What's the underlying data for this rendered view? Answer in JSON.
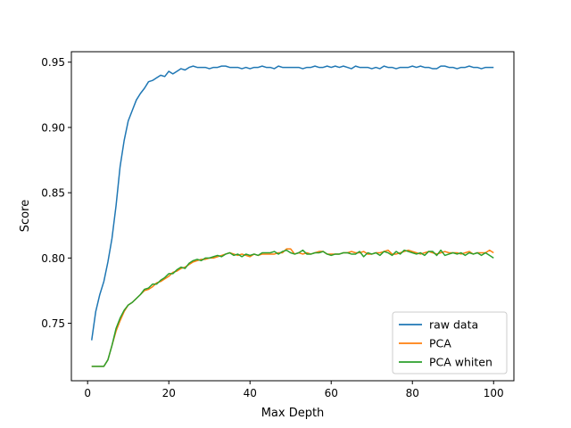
{
  "chart_data": {
    "type": "line",
    "title": "",
    "xlabel": "Max Depth",
    "ylabel": "Score",
    "xlim": [
      -4,
      105
    ],
    "ylim": [
      0.706,
      0.958
    ],
    "xticks": [
      0,
      20,
      40,
      60,
      80,
      100
    ],
    "xtick_labels": [
      "0",
      "20",
      "40",
      "60",
      "80",
      "100"
    ],
    "yticks": [
      0.75,
      0.8,
      0.85,
      0.9,
      0.95
    ],
    "ytick_labels": [
      "0.75",
      "0.80",
      "0.85",
      "0.90",
      "0.95"
    ],
    "grid": false,
    "legend_position": "lower-right",
    "x": [
      1,
      2,
      3,
      4,
      5,
      6,
      7,
      8,
      9,
      10,
      11,
      12,
      13,
      14,
      15,
      16,
      17,
      18,
      19,
      20,
      21,
      22,
      23,
      24,
      25,
      26,
      27,
      28,
      29,
      30,
      31,
      32,
      33,
      34,
      35,
      36,
      37,
      38,
      39,
      40,
      41,
      42,
      43,
      44,
      45,
      46,
      47,
      48,
      49,
      50,
      51,
      52,
      53,
      54,
      55,
      56,
      57,
      58,
      59,
      60,
      61,
      62,
      63,
      64,
      65,
      66,
      67,
      68,
      69,
      70,
      71,
      72,
      73,
      74,
      75,
      76,
      77,
      78,
      79,
      80,
      81,
      82,
      83,
      84,
      85,
      86,
      87,
      88,
      89,
      90,
      91,
      92,
      93,
      94,
      95,
      96,
      97,
      98,
      99,
      100
    ],
    "series": [
      {
        "name": "raw data",
        "color": "#1f77b4",
        "values": [
          0.737,
          0.759,
          0.772,
          0.782,
          0.797,
          0.815,
          0.84,
          0.87,
          0.89,
          0.905,
          0.913,
          0.921,
          0.926,
          0.93,
          0.935,
          0.936,
          0.938,
          0.94,
          0.939,
          0.943,
          0.941,
          0.943,
          0.945,
          0.944,
          0.946,
          0.947,
          0.946,
          0.946,
          0.946,
          0.945,
          0.946,
          0.946,
          0.947,
          0.947,
          0.946,
          0.946,
          0.946,
          0.945,
          0.946,
          0.945,
          0.946,
          0.946,
          0.947,
          0.946,
          0.946,
          0.945,
          0.947,
          0.946,
          0.946,
          0.946,
          0.946,
          0.946,
          0.945,
          0.946,
          0.946,
          0.947,
          0.946,
          0.946,
          0.947,
          0.946,
          0.947,
          0.946,
          0.947,
          0.946,
          0.945,
          0.947,
          0.946,
          0.946,
          0.946,
          0.945,
          0.946,
          0.945,
          0.947,
          0.946,
          0.946,
          0.945,
          0.946,
          0.946,
          0.946,
          0.947,
          0.946,
          0.947,
          0.946,
          0.946,
          0.945,
          0.945,
          0.947,
          0.947,
          0.946,
          0.946,
          0.945,
          0.946,
          0.946,
          0.947,
          0.946,
          0.946,
          0.945,
          0.946,
          0.946,
          0.946
        ]
      },
      {
        "name": "PCA",
        "color": "#ff7f0e",
        "values": [
          0.717,
          0.717,
          0.717,
          0.717,
          0.722,
          0.733,
          0.744,
          0.752,
          0.759,
          0.764,
          0.766,
          0.769,
          0.772,
          0.775,
          0.776,
          0.778,
          0.781,
          0.782,
          0.784,
          0.786,
          0.789,
          0.79,
          0.792,
          0.793,
          0.795,
          0.797,
          0.798,
          0.799,
          0.799,
          0.8,
          0.8,
          0.801,
          0.802,
          0.803,
          0.804,
          0.803,
          0.802,
          0.803,
          0.802,
          0.801,
          0.803,
          0.802,
          0.803,
          0.803,
          0.803,
          0.803,
          0.804,
          0.804,
          0.807,
          0.807,
          0.803,
          0.804,
          0.803,
          0.804,
          0.803,
          0.804,
          0.805,
          0.805,
          0.803,
          0.803,
          0.803,
          0.803,
          0.804,
          0.804,
          0.805,
          0.804,
          0.804,
          0.805,
          0.803,
          0.803,
          0.804,
          0.804,
          0.805,
          0.806,
          0.803,
          0.803,
          0.804,
          0.805,
          0.806,
          0.805,
          0.804,
          0.803,
          0.804,
          0.805,
          0.804,
          0.803,
          0.804,
          0.805,
          0.804,
          0.804,
          0.804,
          0.803,
          0.804,
          0.805,
          0.803,
          0.804,
          0.804,
          0.804,
          0.806,
          0.804
        ]
      },
      {
        "name": "PCA whiten",
        "color": "#2ca02c",
        "values": [
          0.717,
          0.717,
          0.717,
          0.717,
          0.722,
          0.733,
          0.746,
          0.754,
          0.76,
          0.764,
          0.766,
          0.769,
          0.772,
          0.776,
          0.777,
          0.78,
          0.78,
          0.783,
          0.785,
          0.788,
          0.788,
          0.791,
          0.793,
          0.792,
          0.796,
          0.798,
          0.799,
          0.798,
          0.8,
          0.8,
          0.801,
          0.802,
          0.801,
          0.803,
          0.804,
          0.802,
          0.803,
          0.801,
          0.803,
          0.802,
          0.803,
          0.802,
          0.804,
          0.804,
          0.804,
          0.805,
          0.803,
          0.805,
          0.806,
          0.804,
          0.803,
          0.804,
          0.806,
          0.803,
          0.803,
          0.804,
          0.804,
          0.805,
          0.803,
          0.802,
          0.803,
          0.803,
          0.804,
          0.804,
          0.803,
          0.803,
          0.805,
          0.801,
          0.804,
          0.803,
          0.804,
          0.802,
          0.805,
          0.804,
          0.802,
          0.805,
          0.803,
          0.806,
          0.805,
          0.804,
          0.803,
          0.804,
          0.802,
          0.805,
          0.805,
          0.802,
          0.806,
          0.802,
          0.803,
          0.804,
          0.803,
          0.804,
          0.802,
          0.804,
          0.803,
          0.804,
          0.802,
          0.804,
          0.802,
          0.8
        ]
      }
    ]
  }
}
